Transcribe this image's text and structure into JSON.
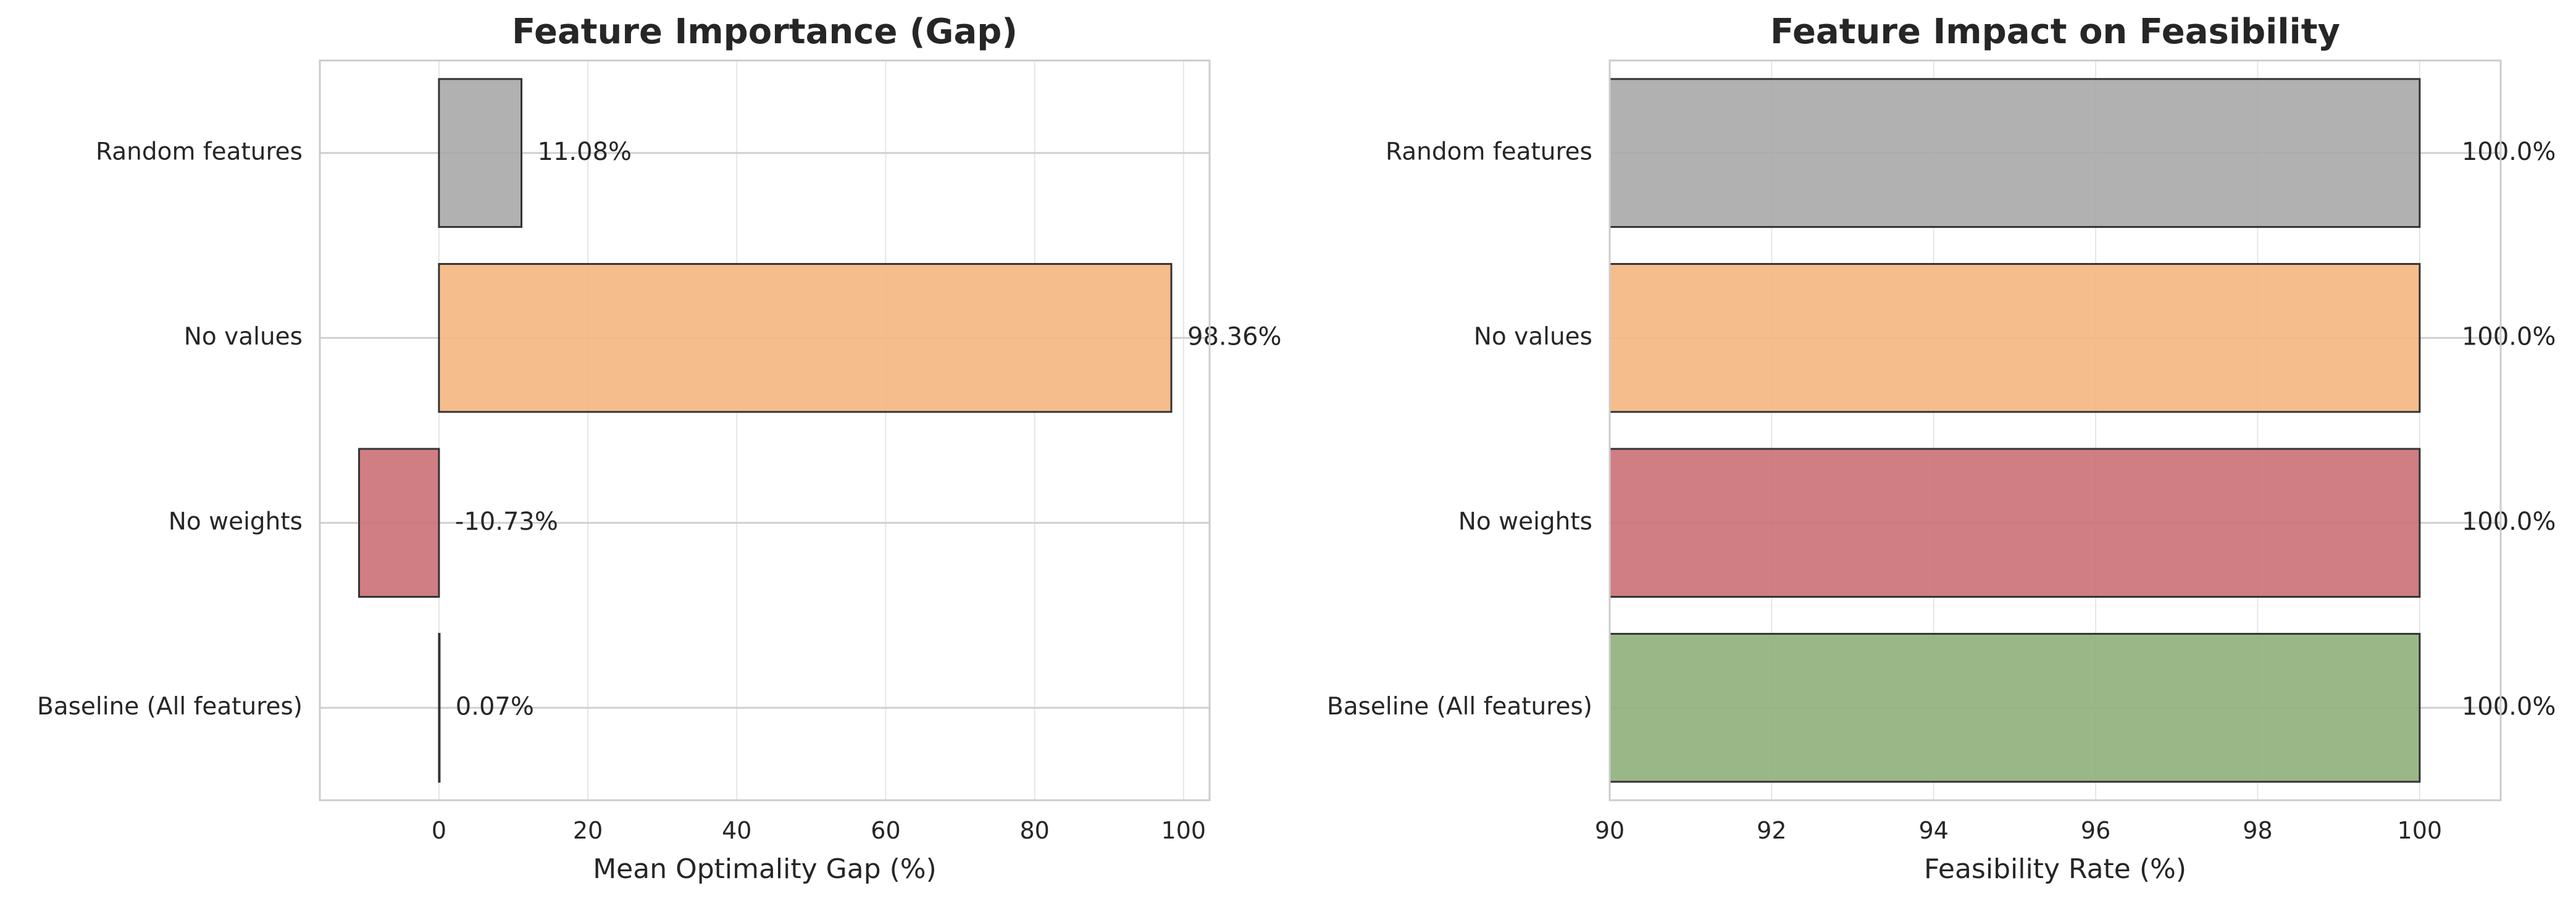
{
  "chart_data": [
    {
      "type": "bar",
      "orientation": "horizontal",
      "title": "Feature Importance (Gap)",
      "xlabel": "Mean Optimality Gap (%)",
      "ylabel": "",
      "categories": [
        "Baseline (All features)",
        "No weights",
        "No values",
        "Random features"
      ],
      "values": [
        0.07,
        -10.73,
        98.36,
        11.08
      ],
      "value_labels": [
        "0.07%",
        "-10.73%",
        "98.36%",
        "11.08%"
      ],
      "colors": [
        "#8fb07a",
        "#cb6f75",
        "#f5b67f",
        "#a8a8a8"
      ],
      "xlim": [
        -16,
        103.5
      ],
      "xticks": [
        0,
        20,
        40,
        60,
        80,
        100
      ],
      "grid": true
    },
    {
      "type": "bar",
      "orientation": "horizontal",
      "title": "Feature Impact on Feasibility",
      "xlabel": "Feasibility Rate (%)",
      "ylabel": "",
      "categories": [
        "Baseline (All features)",
        "No weights",
        "No values",
        "Random features"
      ],
      "values": [
        100.0,
        100.0,
        100.0,
        100.0
      ],
      "value_labels": [
        "100.0%",
        "100.0%",
        "100.0%",
        "100.0%"
      ],
      "colors": [
        "#8fb07a",
        "#cb6f75",
        "#f5b67f",
        "#a8a8a8"
      ],
      "xlim": [
        90,
        101
      ],
      "xticks": [
        90,
        92,
        94,
        96,
        98,
        100
      ],
      "grid": true
    }
  ]
}
